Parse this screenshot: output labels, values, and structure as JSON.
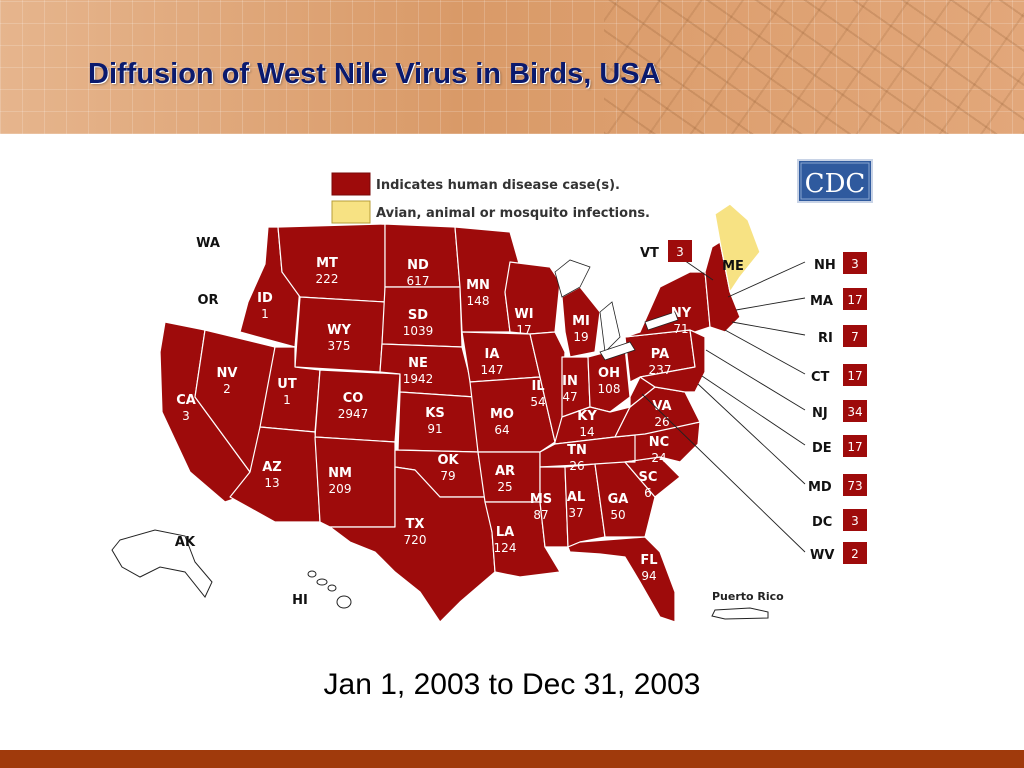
{
  "title": "Diffusion of West Nile Virus in Birds, USA",
  "date_range": "Jan 1, 2003 to Dec 31, 2003",
  "logo": {
    "text": "CDC"
  },
  "colors": {
    "human_case": "#9e0b0b",
    "avian_only": "#f7e283",
    "no_data": "#ffffff",
    "title_color": "#0a1a6e",
    "footer_bar": "#a03a0c"
  },
  "legend": {
    "items": [
      {
        "label": "Indicates human disease case(s).",
        "color": "#9e0b0b"
      },
      {
        "label": "Avian, animal or mosquito infections.",
        "color": "#f7e283"
      }
    ]
  },
  "states": [
    {
      "abbr": "WA",
      "count": "",
      "category": "none"
    },
    {
      "abbr": "OR",
      "count": "",
      "category": "none"
    },
    {
      "abbr": "CA",
      "count": "3",
      "category": "human"
    },
    {
      "abbr": "NV",
      "count": "2",
      "category": "human"
    },
    {
      "abbr": "ID",
      "count": "1",
      "category": "human"
    },
    {
      "abbr": "MT",
      "count": "222",
      "category": "human"
    },
    {
      "abbr": "WY",
      "count": "375",
      "category": "human"
    },
    {
      "abbr": "UT",
      "count": "1",
      "category": "human"
    },
    {
      "abbr": "CO",
      "count": "2947",
      "category": "human"
    },
    {
      "abbr": "AZ",
      "count": "13",
      "category": "human"
    },
    {
      "abbr": "NM",
      "count": "209",
      "category": "human"
    },
    {
      "abbr": "ND",
      "count": "617",
      "category": "human"
    },
    {
      "abbr": "SD",
      "count": "1039",
      "category": "human"
    },
    {
      "abbr": "NE",
      "count": "1942",
      "category": "human"
    },
    {
      "abbr": "KS",
      "count": "91",
      "category": "human"
    },
    {
      "abbr": "OK",
      "count": "79",
      "category": "human"
    },
    {
      "abbr": "TX",
      "count": "720",
      "category": "human"
    },
    {
      "abbr": "MN",
      "count": "148",
      "category": "human"
    },
    {
      "abbr": "IA",
      "count": "147",
      "category": "human"
    },
    {
      "abbr": "MO",
      "count": "64",
      "category": "human"
    },
    {
      "abbr": "AR",
      "count": "25",
      "category": "human"
    },
    {
      "abbr": "LA",
      "count": "124",
      "category": "human"
    },
    {
      "abbr": "WI",
      "count": "17",
      "category": "human"
    },
    {
      "abbr": "IL",
      "count": "54",
      "category": "human"
    },
    {
      "abbr": "MI",
      "count": "19",
      "category": "human"
    },
    {
      "abbr": "IN",
      "count": "47",
      "category": "human"
    },
    {
      "abbr": "OH",
      "count": "108",
      "category": "human"
    },
    {
      "abbr": "KY",
      "count": "14",
      "category": "human"
    },
    {
      "abbr": "TN",
      "count": "26",
      "category": "human"
    },
    {
      "abbr": "MS",
      "count": "87",
      "category": "human"
    },
    {
      "abbr": "AL",
      "count": "37",
      "category": "human"
    },
    {
      "abbr": "GA",
      "count": "50",
      "category": "human"
    },
    {
      "abbr": "FL",
      "count": "94",
      "category": "human"
    },
    {
      "abbr": "SC",
      "count": "6",
      "category": "human"
    },
    {
      "abbr": "NC",
      "count": "24",
      "category": "human"
    },
    {
      "abbr": "VA",
      "count": "26",
      "category": "human"
    },
    {
      "abbr": "PA",
      "count": "237",
      "category": "human"
    },
    {
      "abbr": "NY",
      "count": "71",
      "category": "human"
    },
    {
      "abbr": "ME",
      "count": "",
      "category": "avian"
    },
    {
      "abbr": "AK",
      "count": "",
      "category": "none"
    },
    {
      "abbr": "HI",
      "count": "",
      "category": "none"
    }
  ],
  "small_states": [
    {
      "abbr": "VT",
      "count": "3"
    },
    {
      "abbr": "NH",
      "count": "3"
    },
    {
      "abbr": "MA",
      "count": "17"
    },
    {
      "abbr": "RI",
      "count": "7"
    },
    {
      "abbr": "CT",
      "count": "17"
    },
    {
      "abbr": "NJ",
      "count": "34"
    },
    {
      "abbr": "DE",
      "count": "17"
    },
    {
      "abbr": "MD",
      "count": "73"
    },
    {
      "abbr": "DC",
      "count": "3"
    },
    {
      "abbr": "WV",
      "count": "2"
    }
  ],
  "territory": {
    "label": "Puerto Rico"
  }
}
